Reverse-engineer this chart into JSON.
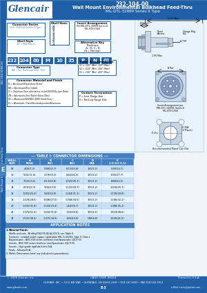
{
  "title_line1": "232-104-00",
  "title_line2": "Wall Mount Environmental Bulkhead Feed-Thru",
  "title_line3": "MIL-DTL-32999 Series II Type",
  "bg_color": "#f0f4f8",
  "header_blue": "#2060a8",
  "light_blue": "#d0e8f8",
  "mid_blue": "#4480c0",
  "box_border": "#2060a8",
  "sidebar_color": "#2060a8",
  "table_header_bg": "#4480c0",
  "table_row_bg1": "#c8e0f4",
  "table_row_bg2": "#e8f4ff",
  "part_box_color": "#2060a8",
  "part_number_boxes": [
    "232",
    "104",
    "00",
    "M",
    "10",
    "35",
    "P",
    "N",
    "01"
  ],
  "table_headers": [
    "SHELL\nSIZE",
    "A\nIN(A)",
    "B\nIN()",
    "C\nIN()",
    "D\nDIA",
    "E\n(+0.5)(-0.1)"
  ],
  "table_rows": [
    [
      "08",
      ".406(7.3)",
      ".598(15.7)",
      ".813(20.8)",
      "125(3.2)",
      ".590(14.7)"
    ],
    [
      "10",
      ".591(11.0)",
      "2.19(19.3)",
      ".844(26.0)",
      "125(3.2)",
      ".830(17.7)"
    ],
    [
      "12",
      ".750(13.5)",
      ".813(20.6)",
      "1.025(26.3)",
      "125(3.2)",
      ".888(22.5)"
    ],
    [
      "14",
      ".875(22.3)",
      ".906(23.0)",
      "1.131(28.7)",
      "125(3.2)",
      "1.016(25.7)"
    ],
    [
      "16",
      "1.001(25.4)",
      ".940(24.8)",
      "1.204(31.1)",
      "125(3.2)",
      "1.135(28.8)"
    ],
    [
      "18",
      "1.126(28.6)",
      "1.046(27.0)",
      "1.344(34.5)",
      "125(3.2)",
      "1.246(32.2)"
    ],
    [
      "20",
      "1.201(31.8)",
      "1.116(29.4)",
      "1.44(38.7)",
      "125(3.2)",
      "1.386(35.2)"
    ],
    [
      "22",
      "1.375(51.0)",
      "1.216(31.8)",
      "1.58(39.6)",
      "125(3.2)",
      "1.519(38.6)"
    ],
    [
      "24",
      "1.501(38.5)",
      "1.375(34.9)",
      "1.85(43.0)",
      "H56(4.8)",
      "1.635(41.5)"
    ]
  ],
  "footer_left": "© 2009 Glenair, Inc.",
  "footer_center": "CAGE CODE 06324",
  "footer_right": "Printed in U.S.A.",
  "footer_company": "GLENAIR, INC. • 1211 AIR WAY • GLENDALE, CA 91201-2497 • 818-247-6000 • FAX 818-500-9912",
  "footer_web": "www.glenair.com",
  "footer_email": "e-Mail: sales@glenair.com",
  "footer_page": "E-3",
  "sidebar_text": "232-104-00NC10",
  "sidebar_text2": "Wall Mount Environmental Feed-Thru",
  "e_label": "E"
}
